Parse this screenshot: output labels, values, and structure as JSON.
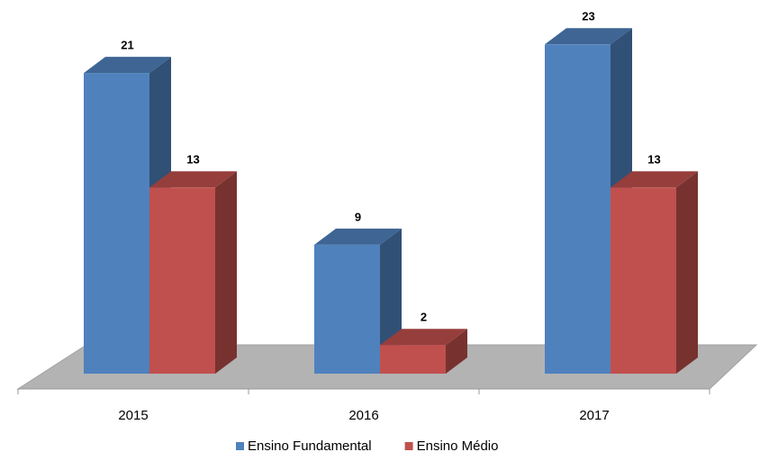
{
  "chart_data": {
    "type": "bar3d",
    "categories": [
      "2015",
      "2016",
      "2017"
    ],
    "series": [
      {
        "name": "Ensino Fundamental",
        "color": "#4f81bd",
        "values": [
          21,
          9,
          23
        ]
      },
      {
        "name": "Ensino Médio",
        "color": "#c0504d",
        "values": [
          13,
          2,
          13
        ]
      }
    ]
  }
}
